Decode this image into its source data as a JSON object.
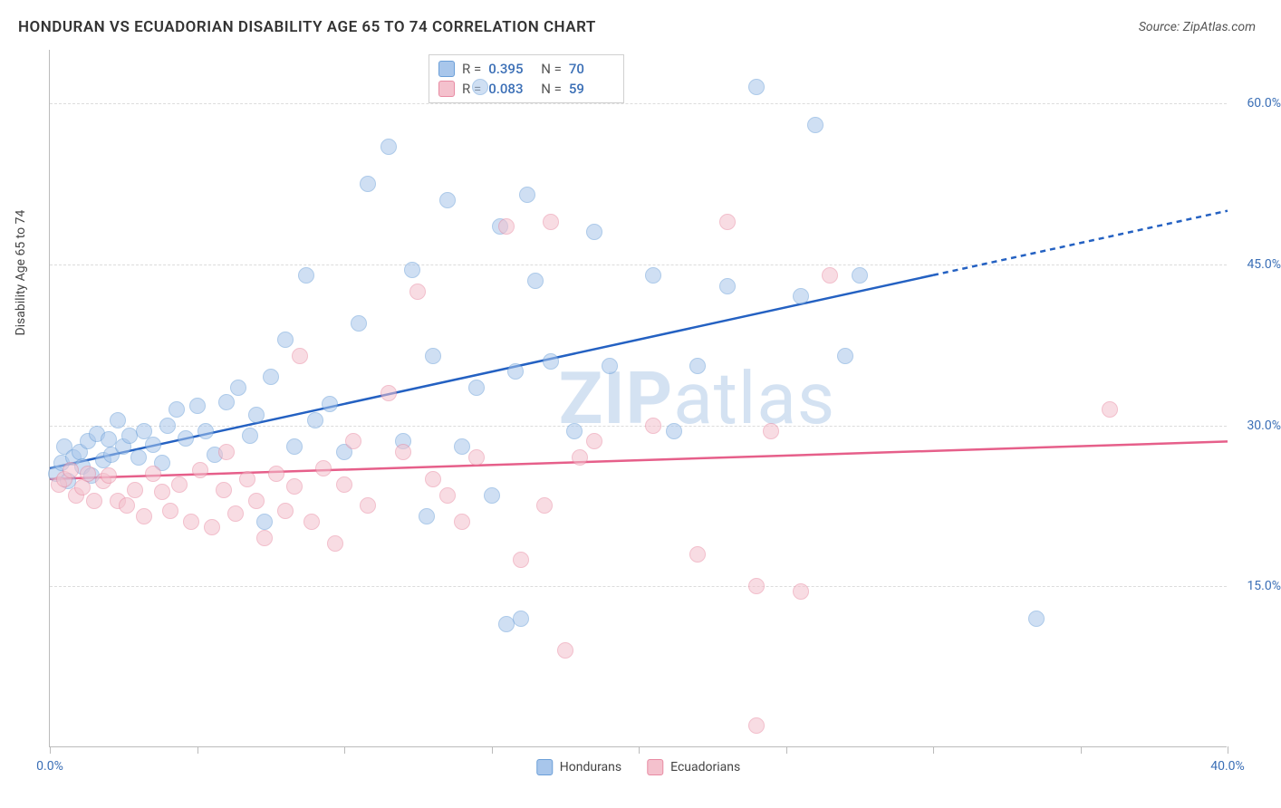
{
  "title": "HONDURAN VS ECUADORIAN DISABILITY AGE 65 TO 74 CORRELATION CHART",
  "source_label": "Source: ZipAtlas.com",
  "y_axis_label": "Disability Age 65 to 74",
  "watermark": {
    "prefix": "ZIP",
    "suffix": "atlas"
  },
  "chart": {
    "type": "scatter",
    "xlim": [
      0,
      40
    ],
    "ylim": [
      0,
      65
    ],
    "x_ticks": [
      0,
      5,
      10,
      15,
      20,
      25,
      30,
      35,
      40
    ],
    "x_tick_labels": {
      "0": "0.0%",
      "40": "40.0%"
    },
    "y_gridlines": [
      15,
      30,
      45,
      60
    ],
    "y_tick_labels": {
      "15": "15.0%",
      "30": "30.0%",
      "45": "45.0%",
      "60": "60.0%"
    },
    "grid_color": "#dcdcdc",
    "background_color": "#ffffff",
    "axis_color": "#bbbbbb",
    "tick_label_color": "#3b6fb6",
    "marker_radius": 9,
    "marker_opacity": 0.55,
    "marker_stroke_opacity": 0.9
  },
  "series": [
    {
      "name": "Hondurans",
      "color_fill": "#a8c6eb",
      "color_stroke": "#6b9fd8",
      "trend_color": "#2461c2",
      "trend_width": 2.5,
      "R": "0.395",
      "N": "70",
      "trendline": {
        "x1": 0,
        "y1": 26,
        "x2": 30,
        "y2": 44,
        "x_solid_end": 30,
        "x_dash_end": 40,
        "y_dash_end": 50
      },
      "points": [
        [
          0.2,
          25.5
        ],
        [
          0.4,
          26.5
        ],
        [
          0.5,
          28
        ],
        [
          0.6,
          24.8
        ],
        [
          0.8,
          27
        ],
        [
          1.0,
          27.5
        ],
        [
          1.1,
          26.2
        ],
        [
          1.3,
          28.5
        ],
        [
          1.4,
          25.3
        ],
        [
          1.6,
          29.2
        ],
        [
          1.8,
          26.8
        ],
        [
          2.0,
          28.7
        ],
        [
          2.1,
          27.3
        ],
        [
          2.3,
          30.5
        ],
        [
          2.5,
          28.0
        ],
        [
          2.7,
          29.0
        ],
        [
          3.0,
          27.0
        ],
        [
          3.2,
          29.5
        ],
        [
          3.5,
          28.2
        ],
        [
          3.8,
          26.5
        ],
        [
          4.0,
          30.0
        ],
        [
          4.3,
          31.5
        ],
        [
          4.6,
          28.8
        ],
        [
          5.0,
          31.8
        ],
        [
          5.3,
          29.5
        ],
        [
          5.6,
          27.3
        ],
        [
          6.0,
          32.2
        ],
        [
          6.4,
          33.5
        ],
        [
          6.8,
          29.0
        ],
        [
          7.0,
          31.0
        ],
        [
          7.3,
          21.0
        ],
        [
          7.5,
          34.5
        ],
        [
          8.0,
          38.0
        ],
        [
          8.3,
          28.0
        ],
        [
          8.7,
          44.0
        ],
        [
          9.0,
          30.5
        ],
        [
          9.5,
          32.0
        ],
        [
          10.0,
          27.5
        ],
        [
          10.5,
          39.5
        ],
        [
          10.8,
          52.5
        ],
        [
          11.5,
          56.0
        ],
        [
          12.0,
          28.5
        ],
        [
          12.3,
          44.5
        ],
        [
          12.8,
          21.5
        ],
        [
          13.0,
          36.5
        ],
        [
          13.5,
          51.0
        ],
        [
          14.0,
          28.0
        ],
        [
          14.5,
          33.5
        ],
        [
          14.6,
          61.5
        ],
        [
          15.0,
          23.5
        ],
        [
          15.3,
          48.5
        ],
        [
          15.5,
          11.5
        ],
        [
          15.8,
          35.0
        ],
        [
          16.2,
          51.5
        ],
        [
          16.5,
          43.5
        ],
        [
          17.0,
          36.0
        ],
        [
          17.8,
          29.5
        ],
        [
          18.5,
          48.0
        ],
        [
          19.0,
          35.5
        ],
        [
          20.5,
          44.0
        ],
        [
          21.2,
          29.5
        ],
        [
          22.0,
          35.5
        ],
        [
          23.0,
          43.0
        ],
        [
          24.0,
          61.5
        ],
        [
          25.5,
          42.0
        ],
        [
          26.0,
          58.0
        ],
        [
          27.0,
          36.5
        ],
        [
          27.5,
          44.0
        ],
        [
          33.5,
          12.0
        ],
        [
          16.0,
          12.0
        ]
      ]
    },
    {
      "name": "Ecuadorians",
      "color_fill": "#f4c1cd",
      "color_stroke": "#e88ba3",
      "trend_color": "#e65f8a",
      "trend_width": 2.5,
      "R": "0.083",
      "N": "59",
      "trendline": {
        "x1": 0,
        "y1": 25,
        "x2": 40,
        "y2": 28.5,
        "x_solid_end": 40,
        "x_dash_end": 40,
        "y_dash_end": 28.5
      },
      "points": [
        [
          0.3,
          24.5
        ],
        [
          0.5,
          25.0
        ],
        [
          0.7,
          25.8
        ],
        [
          0.9,
          23.5
        ],
        [
          1.1,
          24.2
        ],
        [
          1.3,
          25.5
        ],
        [
          1.5,
          23.0
        ],
        [
          1.8,
          24.8
        ],
        [
          2.0,
          25.3
        ],
        [
          2.3,
          23.0
        ],
        [
          2.6,
          22.5
        ],
        [
          2.9,
          24.0
        ],
        [
          3.2,
          21.5
        ],
        [
          3.5,
          25.5
        ],
        [
          3.8,
          23.8
        ],
        [
          4.1,
          22.0
        ],
        [
          4.4,
          24.5
        ],
        [
          4.8,
          21.0
        ],
        [
          5.1,
          25.8
        ],
        [
          5.5,
          20.5
        ],
        [
          5.9,
          24.0
        ],
        [
          6.0,
          27.5
        ],
        [
          6.3,
          21.8
        ],
        [
          6.7,
          25.0
        ],
        [
          7.0,
          23.0
        ],
        [
          7.3,
          19.5
        ],
        [
          7.7,
          25.5
        ],
        [
          8.0,
          22.0
        ],
        [
          8.3,
          24.3
        ],
        [
          8.5,
          36.5
        ],
        [
          8.9,
          21.0
        ],
        [
          9.3,
          26.0
        ],
        [
          9.7,
          19.0
        ],
        [
          10.0,
          24.5
        ],
        [
          10.3,
          28.5
        ],
        [
          10.8,
          22.5
        ],
        [
          11.5,
          33.0
        ],
        [
          12.0,
          27.5
        ],
        [
          12.5,
          42.5
        ],
        [
          13.0,
          25.0
        ],
        [
          13.5,
          23.5
        ],
        [
          14.0,
          21.0
        ],
        [
          14.5,
          27.0
        ],
        [
          15.5,
          48.5
        ],
        [
          16.0,
          17.5
        ],
        [
          16.8,
          22.5
        ],
        [
          17.0,
          49.0
        ],
        [
          17.5,
          9.0
        ],
        [
          18.0,
          27.0
        ],
        [
          18.5,
          28.5
        ],
        [
          20.5,
          30.0
        ],
        [
          22.0,
          18.0
        ],
        [
          23.0,
          49.0
        ],
        [
          24.0,
          15.0
        ],
        [
          24.5,
          29.5
        ],
        [
          25.5,
          14.5
        ],
        [
          26.5,
          44.0
        ],
        [
          24.0,
          2.0
        ],
        [
          36.0,
          31.5
        ]
      ]
    }
  ],
  "stats_box": {
    "r_label": "R =",
    "n_label": "N ="
  },
  "legend": {
    "items": [
      "Hondurans",
      "Ecuadorians"
    ]
  }
}
